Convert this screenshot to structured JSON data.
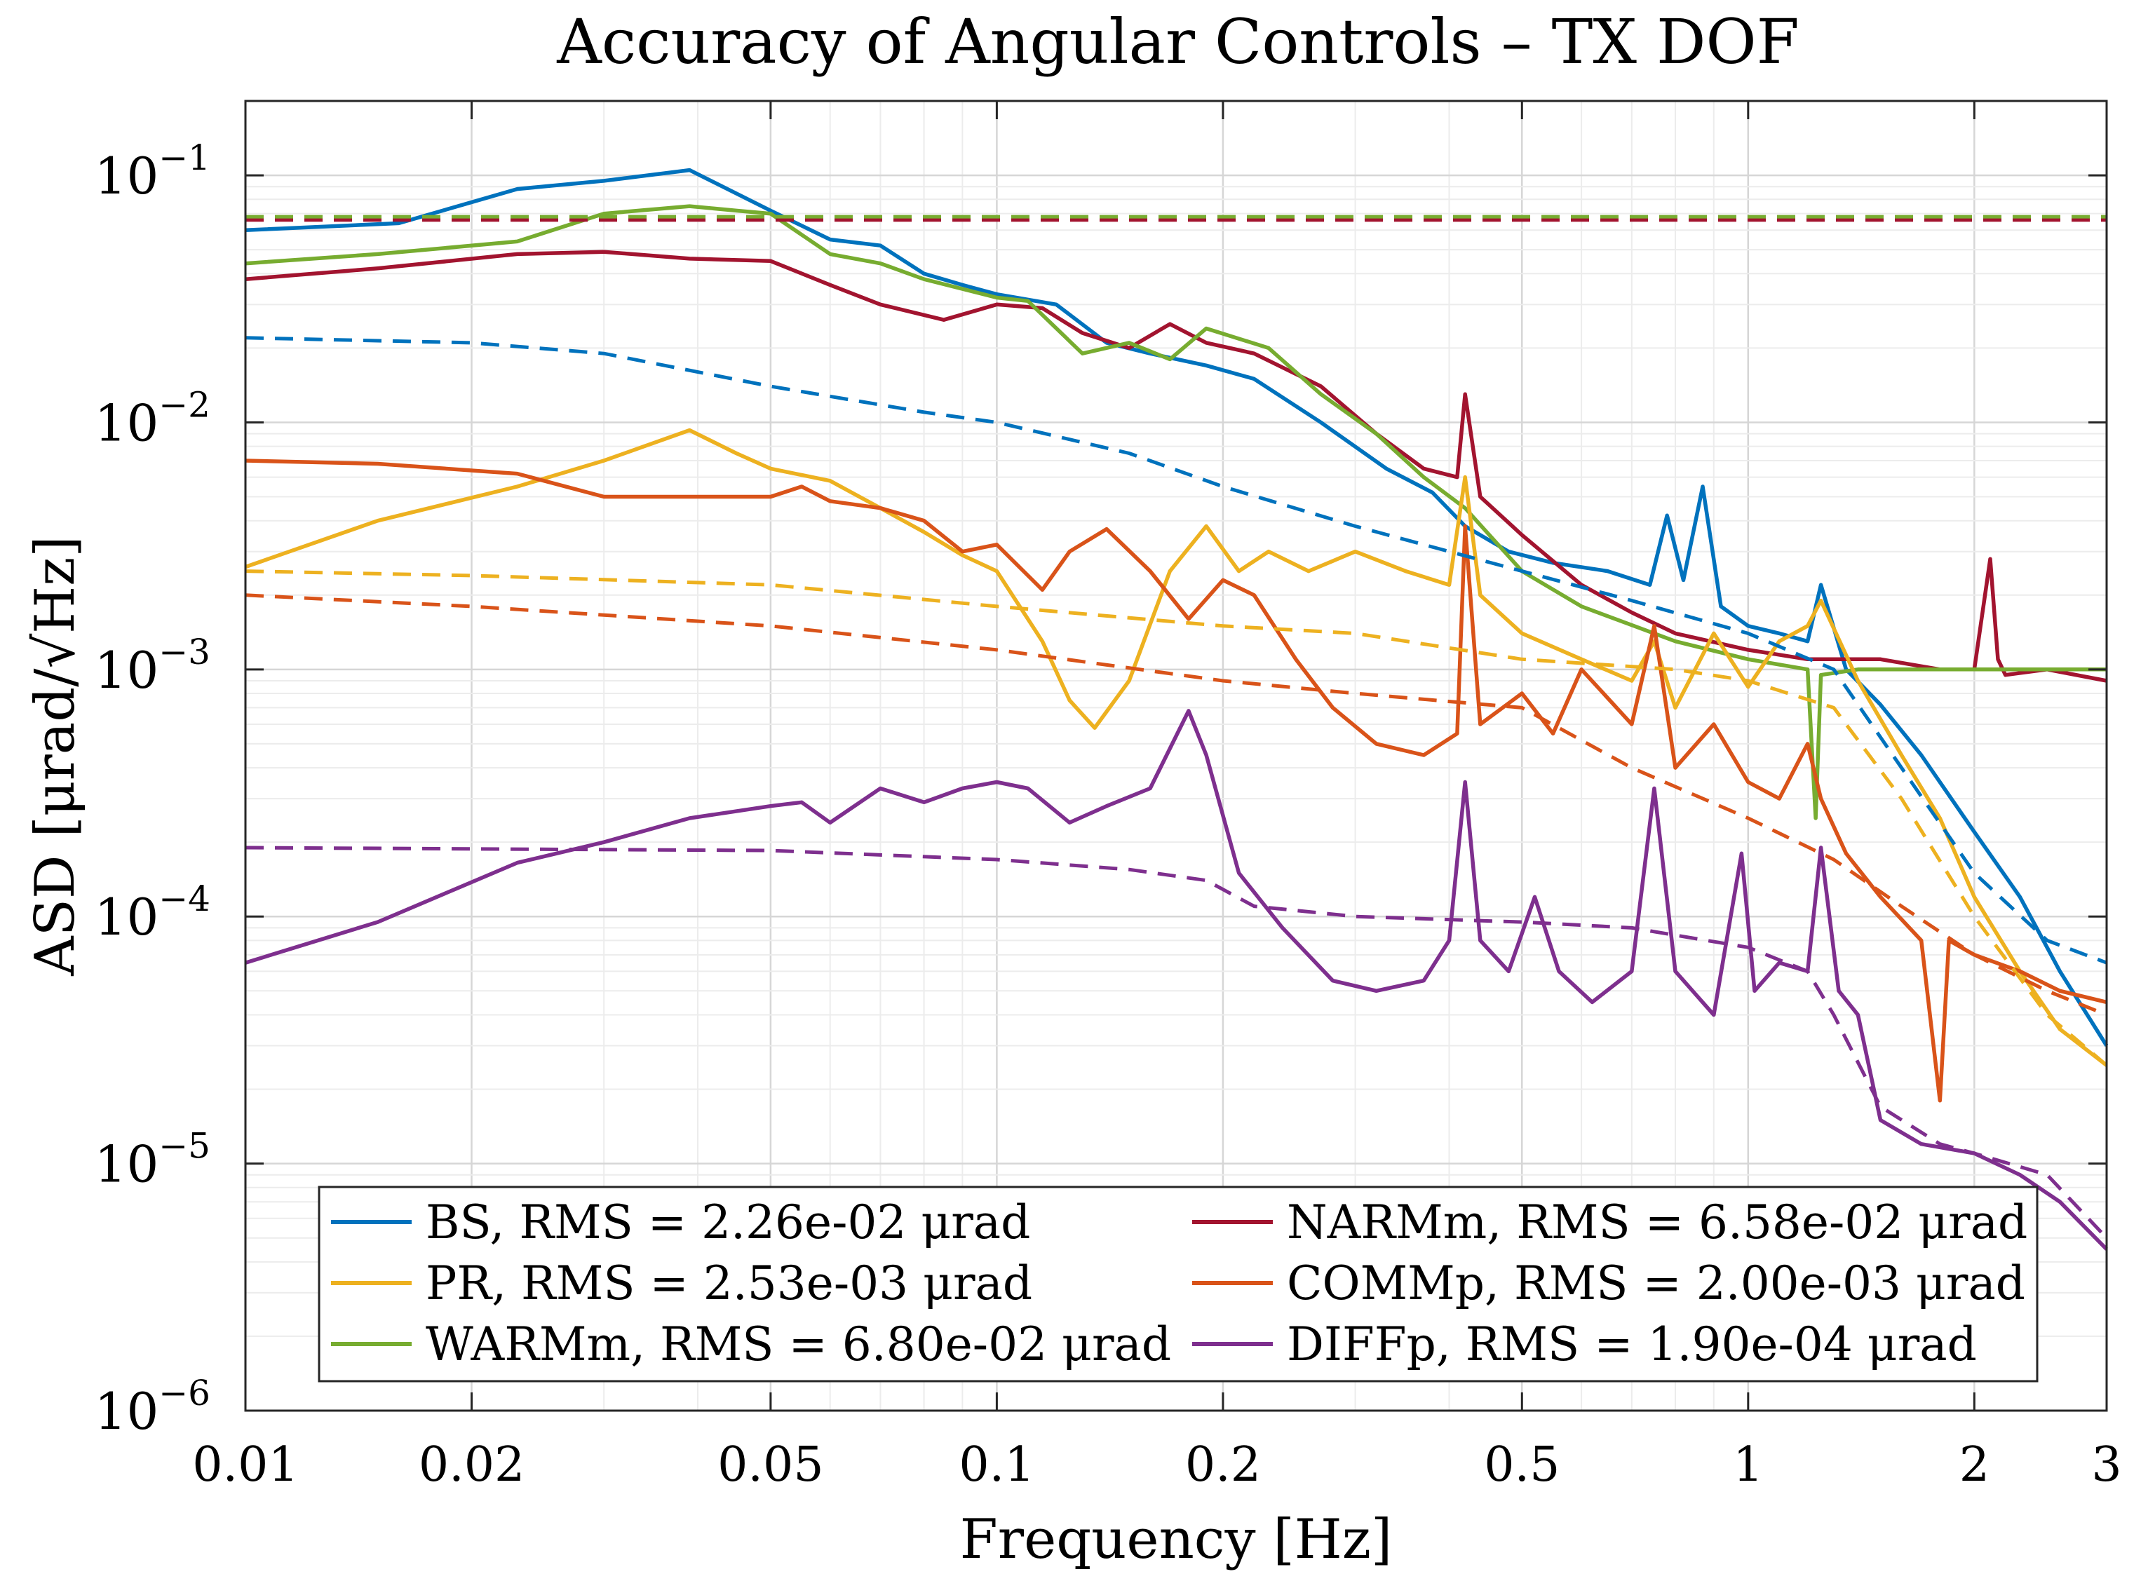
{
  "chart_data": {
    "type": "line",
    "title": "Accuracy of Angular Controls – TX DOF",
    "xlabel": "Frequency [Hz]",
    "ylabel": "ASD [μrad/√Hz]",
    "xscale": "log",
    "yscale": "log",
    "xlim": [
      0.01,
      3
    ],
    "ylim": [
      1e-06,
      0.2
    ],
    "grid": true,
    "legend_placement": "bottom",
    "x_ticks": [
      0.01,
      0.02,
      0.05,
      0.1,
      0.2,
      0.5,
      1,
      2,
      3
    ],
    "x_tick_labels": [
      "0.01",
      "0.02",
      "0.05",
      "0.1",
      "0.2",
      "0.5",
      "1",
      "2",
      "3"
    ],
    "y_ticks": [
      1e-06,
      1e-05,
      0.0001,
      0.001,
      0.01,
      0.1
    ],
    "y_tick_labels": [
      {
        "base": "10",
        "exp": "−6"
      },
      {
        "base": "10",
        "exp": "−5"
      },
      {
        "base": "10",
        "exp": "−4"
      },
      {
        "base": "10",
        "exp": "−3"
      },
      {
        "base": "10",
        "exp": "−2"
      },
      {
        "base": "10",
        "exp": "−1"
      }
    ],
    "legend": [
      {
        "label": "BS, RMS = 2.26e-02 μrad",
        "color": "#0072BD"
      },
      {
        "label": "NARMm, RMS = 6.58e-02 μrad",
        "color": "#A2142F"
      },
      {
        "label": "PR, RMS = 2.53e-03 μrad",
        "color": "#EDB120"
      },
      {
        "label": "COMMp, RMS = 2.00e-03 μrad",
        "color": "#D95319"
      },
      {
        "label": "WARMm, RMS = 6.80e-02 μrad",
        "color": "#77AC30"
      },
      {
        "label": "DIFFp, RMS = 1.90e-04 μrad",
        "color": "#7E2F8E"
      }
    ],
    "series": [
      {
        "key": "BS",
        "color": "#0072BD",
        "style": "solid",
        "x": [
          0.01,
          0.016,
          0.023,
          0.03,
          0.039,
          0.05,
          0.06,
          0.07,
          0.08,
          0.09,
          0.1,
          0.12,
          0.14,
          0.16,
          0.19,
          0.22,
          0.27,
          0.33,
          0.38,
          0.42,
          0.48,
          0.55,
          0.65,
          0.74,
          0.78,
          0.82,
          0.87,
          0.92,
          1.0,
          1.1,
          1.2,
          1.25,
          1.35,
          1.5,
          1.7,
          2.0,
          2.3,
          2.6,
          3.0
        ],
        "y": [
          0.06,
          0.064,
          0.088,
          0.095,
          0.105,
          0.072,
          0.055,
          0.052,
          0.04,
          0.036,
          0.033,
          0.03,
          0.021,
          0.019,
          0.017,
          0.015,
          0.01,
          0.0065,
          0.0052,
          0.0038,
          0.003,
          0.0027,
          0.0025,
          0.0022,
          0.0042,
          0.0023,
          0.0055,
          0.0018,
          0.0015,
          0.0014,
          0.0013,
          0.0022,
          0.001,
          0.00072,
          0.00045,
          0.00022,
          0.00012,
          6e-05,
          3e-05
        ]
      },
      {
        "key": "NARMm",
        "color": "#A2142F",
        "style": "solid",
        "x": [
          0.01,
          0.015,
          0.023,
          0.03,
          0.039,
          0.05,
          0.06,
          0.07,
          0.085,
          0.1,
          0.115,
          0.13,
          0.15,
          0.17,
          0.19,
          0.22,
          0.27,
          0.32,
          0.37,
          0.41,
          0.42,
          0.44,
          0.5,
          0.6,
          0.7,
          0.8,
          1.0,
          1.2,
          1.5,
          1.8,
          2.0,
          2.1,
          2.15,
          2.2,
          2.5,
          3.0
        ],
        "y": [
          0.038,
          0.042,
          0.048,
          0.049,
          0.046,
          0.045,
          0.036,
          0.03,
          0.026,
          0.03,
          0.029,
          0.023,
          0.02,
          0.025,
          0.021,
          0.019,
          0.014,
          0.009,
          0.0065,
          0.006,
          0.013,
          0.005,
          0.0035,
          0.0022,
          0.0017,
          0.0014,
          0.0012,
          0.0011,
          0.0011,
          0.001,
          0.001,
          0.0028,
          0.0011,
          0.00095,
          0.001,
          0.0009
        ]
      },
      {
        "key": "WARMm",
        "color": "#77AC30",
        "style": "solid",
        "x": [
          0.01,
          0.015,
          0.023,
          0.03,
          0.039,
          0.045,
          0.05,
          0.06,
          0.07,
          0.08,
          0.1,
          0.11,
          0.13,
          0.15,
          0.17,
          0.19,
          0.23,
          0.27,
          0.32,
          0.37,
          0.42,
          0.5,
          0.6,
          0.8,
          1.0,
          1.2,
          1.23,
          1.25,
          1.4,
          1.7,
          2.0,
          2.5,
          3.0
        ],
        "y": [
          0.044,
          0.048,
          0.054,
          0.07,
          0.075,
          0.072,
          0.07,
          0.048,
          0.044,
          0.038,
          0.032,
          0.031,
          0.019,
          0.021,
          0.018,
          0.024,
          0.02,
          0.013,
          0.009,
          0.006,
          0.0045,
          0.0025,
          0.0018,
          0.0013,
          0.0011,
          0.001,
          0.00025,
          0.00095,
          0.001,
          0.001,
          0.001,
          0.001,
          0.001
        ]
      },
      {
        "key": "PR",
        "color": "#EDB120",
        "style": "solid",
        "x": [
          0.01,
          0.015,
          0.023,
          0.03,
          0.039,
          0.045,
          0.05,
          0.06,
          0.07,
          0.08,
          0.09,
          0.1,
          0.115,
          0.125,
          0.135,
          0.15,
          0.17,
          0.19,
          0.21,
          0.23,
          0.26,
          0.3,
          0.35,
          0.4,
          0.42,
          0.44,
          0.5,
          0.6,
          0.7,
          0.75,
          0.8,
          0.9,
          1.0,
          1.1,
          1.2,
          1.25,
          1.4,
          1.6,
          1.8,
          2.0,
          2.3,
          2.6,
          3.0
        ],
        "y": [
          0.0026,
          0.004,
          0.0055,
          0.007,
          0.0093,
          0.0075,
          0.0065,
          0.0058,
          0.0045,
          0.0036,
          0.0029,
          0.0025,
          0.0013,
          0.00075,
          0.00058,
          0.0009,
          0.0025,
          0.0038,
          0.0025,
          0.003,
          0.0025,
          0.003,
          0.0025,
          0.0022,
          0.006,
          0.002,
          0.0014,
          0.0011,
          0.0009,
          0.0013,
          0.0007,
          0.0014,
          0.00085,
          0.0013,
          0.0015,
          0.0019,
          0.0009,
          0.00045,
          0.00025,
          0.00012,
          6e-05,
          3.5e-05,
          2.5e-05
        ]
      },
      {
        "key": "COMMp",
        "color": "#D95319",
        "style": "solid",
        "x": [
          0.01,
          0.015,
          0.023,
          0.03,
          0.039,
          0.05,
          0.055,
          0.06,
          0.07,
          0.08,
          0.09,
          0.1,
          0.115,
          0.125,
          0.14,
          0.16,
          0.18,
          0.2,
          0.22,
          0.25,
          0.28,
          0.32,
          0.37,
          0.41,
          0.42,
          0.44,
          0.5,
          0.55,
          0.6,
          0.7,
          0.75,
          0.8,
          0.9,
          1.0,
          1.1,
          1.2,
          1.25,
          1.35,
          1.5,
          1.7,
          1.8,
          1.85,
          2.0,
          2.3,
          2.6,
          3.0
        ],
        "y": [
          0.007,
          0.0068,
          0.0062,
          0.005,
          0.005,
          0.005,
          0.0055,
          0.0048,
          0.0045,
          0.004,
          0.003,
          0.0032,
          0.0021,
          0.003,
          0.0037,
          0.0025,
          0.0016,
          0.0023,
          0.002,
          0.0011,
          0.0007,
          0.0005,
          0.00045,
          0.00055,
          0.0038,
          0.0006,
          0.0008,
          0.00055,
          0.001,
          0.0006,
          0.0015,
          0.0004,
          0.0006,
          0.00035,
          0.0003,
          0.0005,
          0.0003,
          0.00018,
          0.00012,
          8e-05,
          1.8e-05,
          8e-05,
          7e-05,
          6e-05,
          5e-05,
          4.5e-05
        ]
      },
      {
        "key": "DIFFp",
        "color": "#7E2F8E",
        "style": "solid",
        "x": [
          0.01,
          0.015,
          0.023,
          0.03,
          0.039,
          0.05,
          0.055,
          0.06,
          0.07,
          0.08,
          0.09,
          0.1,
          0.11,
          0.125,
          0.14,
          0.16,
          0.18,
          0.19,
          0.21,
          0.24,
          0.28,
          0.32,
          0.37,
          0.4,
          0.42,
          0.44,
          0.48,
          0.52,
          0.56,
          0.62,
          0.7,
          0.75,
          0.8,
          0.9,
          0.98,
          1.02,
          1.1,
          1.2,
          1.25,
          1.32,
          1.4,
          1.5,
          1.7,
          2.0,
          2.3,
          2.6,
          3.0
        ],
        "y": [
          6.5e-05,
          9.5e-05,
          0.000165,
          0.0002,
          0.00025,
          0.00028,
          0.00029,
          0.00024,
          0.00033,
          0.00029,
          0.00033,
          0.00035,
          0.00033,
          0.00024,
          0.00028,
          0.00033,
          0.00068,
          0.00045,
          0.00015,
          9e-05,
          5.5e-05,
          5e-05,
          5.5e-05,
          8e-05,
          0.00035,
          8e-05,
          6e-05,
          0.00012,
          6e-05,
          4.5e-05,
          6e-05,
          0.00033,
          6e-05,
          4e-05,
          0.00018,
          5e-05,
          6.5e-05,
          6e-05,
          0.00019,
          5e-05,
          4e-05,
          1.5e-05,
          1.2e-05,
          1.1e-05,
          9e-06,
          7e-06,
          4.5e-06
        ]
      },
      {
        "key": "BS-dashed",
        "color": "#0072BD",
        "style": "dashed",
        "x": [
          0.01,
          0.02,
          0.03,
          0.05,
          0.08,
          0.1,
          0.15,
          0.2,
          0.3,
          0.5,
          0.7,
          1.0,
          1.3,
          1.6,
          2.0,
          2.5,
          3.0
        ],
        "y": [
          0.022,
          0.021,
          0.019,
          0.014,
          0.011,
          0.01,
          0.0075,
          0.0055,
          0.0038,
          0.0025,
          0.0019,
          0.0014,
          0.001,
          0.0004,
          0.00015,
          8e-05,
          6.5e-05
        ]
      },
      {
        "key": "NARMm-dashed",
        "color": "#A2142F",
        "style": "dashed",
        "x": [
          0.01,
          3.0
        ],
        "y": [
          0.066,
          0.066
        ]
      },
      {
        "key": "WARMm-dashed",
        "color": "#77AC30",
        "style": "dashed",
        "x": [
          0.01,
          3.0
        ],
        "y": [
          0.068,
          0.068
        ]
      },
      {
        "key": "PR-dashed",
        "color": "#EDB120",
        "style": "dashed",
        "x": [
          0.01,
          0.02,
          0.05,
          0.1,
          0.2,
          0.3,
          0.5,
          0.8,
          1.0,
          1.3,
          1.6,
          2.0,
          2.5,
          3.0
        ],
        "y": [
          0.0025,
          0.0024,
          0.0022,
          0.0018,
          0.0015,
          0.0014,
          0.0011,
          0.001,
          0.0009,
          0.0007,
          0.0003,
          0.0001,
          4e-05,
          2.5e-05
        ]
      },
      {
        "key": "COMMp-dashed",
        "color": "#D95319",
        "style": "dashed",
        "x": [
          0.01,
          0.02,
          0.05,
          0.1,
          0.2,
          0.3,
          0.5,
          0.7,
          1.0,
          1.3,
          1.6,
          2.0,
          2.5,
          3.0
        ],
        "y": [
          0.002,
          0.0018,
          0.0015,
          0.0012,
          0.0009,
          0.0008,
          0.0007,
          0.0004,
          0.00025,
          0.00017,
          0.00011,
          7e-05,
          5e-05,
          4e-05
        ]
      },
      {
        "key": "DIFFp-dashed",
        "color": "#7E2F8E",
        "style": "dashed",
        "x": [
          0.01,
          0.05,
          0.1,
          0.15,
          0.19,
          0.22,
          0.3,
          0.5,
          0.7,
          1.0,
          1.2,
          1.3,
          1.5,
          1.8,
          2.0,
          2.5,
          3.0
        ],
        "y": [
          0.00019,
          0.000185,
          0.00017,
          0.000155,
          0.00014,
          0.00011,
          0.0001,
          9.5e-05,
          9e-05,
          7.5e-05,
          6e-05,
          4e-05,
          1.7e-05,
          1.2e-05,
          1.1e-05,
          9e-06,
          5e-06
        ]
      }
    ]
  }
}
